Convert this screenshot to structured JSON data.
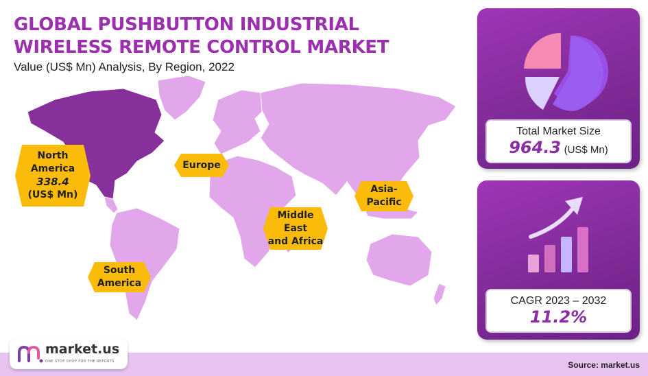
{
  "title": "GLOBAL PUSHBUTTON INDUSTRIAL WIRELESS REMOTE CONTROL MARKET",
  "subtitle": "Value (US$ Mn) Analysis, By Region, 2022",
  "regions": {
    "north_america": {
      "line1": "North",
      "line2": "America",
      "value": "338.4",
      "unit": "(US$ Mn)"
    },
    "europe": {
      "label": "Europe"
    },
    "asia_pacific": {
      "line1": "Asia-",
      "line2": "Pacific"
    },
    "mea": {
      "line1": "Middle",
      "line2": "East",
      "line3": "and Africa"
    },
    "south_america": {
      "line1": "South",
      "line2": "America"
    }
  },
  "total": {
    "label": "Total Market Size",
    "value": "964.3",
    "unit": "(US$ Mn)"
  },
  "cagr": {
    "label": "CAGR 2023 – 2032",
    "value": "11.2%"
  },
  "logo": {
    "name": "market.us",
    "tagline": "ONE STOP SHOP FOR THE REPORTS"
  },
  "source": "Source: market.us",
  "colors": {
    "primary": "#9b2fae",
    "highlight": "#fbbb0a",
    "land": "#e2a6ea",
    "north_america": "#87309c",
    "footer": "#e8c3ef"
  },
  "chart_data": {
    "type": "map",
    "title": "GLOBAL PUSHBUTTON INDUSTRIAL WIRELESS REMOTE CONTROL MARKET",
    "subtitle": "Value (US$ Mn) Analysis, By Region, 2022",
    "regions": [
      "North America",
      "Europe",
      "Asia-Pacific",
      "Middle East and Africa",
      "South America"
    ],
    "values": [
      338.4,
      null,
      null,
      null,
      null
    ],
    "total_market_size": 964.3,
    "cagr_2023_2032": 11.2
  }
}
